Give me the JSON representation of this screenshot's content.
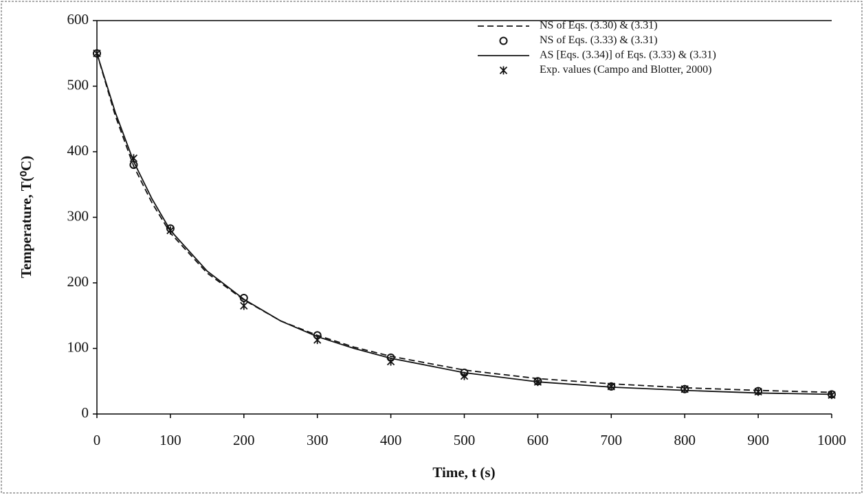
{
  "chart_data": {
    "type": "line",
    "x_label": "Time, t (s)",
    "y_label": "Temperature, T(⁰C)",
    "xlim": [
      0,
      1000
    ],
    "xticks": [
      0,
      100,
      200,
      300,
      400,
      500,
      600,
      700,
      800,
      900,
      1000
    ],
    "ylim": [
      0,
      600
    ],
    "yticks": [
      0,
      100,
      200,
      300,
      400,
      500,
      600
    ],
    "grid": false,
    "legend": "upper right",
    "series": [
      {
        "name": "NS of  Eqs. (3.30)  & (3.31)",
        "color": "#111111",
        "line_style": "dashed",
        "marker": "none",
        "x": [
          0,
          25,
          50,
          75,
          100,
          150,
          200,
          250,
          300,
          350,
          400,
          500,
          600,
          700,
          800,
          900,
          1000
        ],
        "values": [
          550,
          455,
          378,
          322,
          276,
          215,
          174,
          142,
          120,
          102,
          88,
          67,
          54,
          46,
          40,
          36,
          33
        ]
      },
      {
        "name": "NS of  Eqs. (3.33) & (3.31)",
        "color": "#111111",
        "line_style": "none",
        "marker": "circle",
        "x": [
          0,
          50,
          100,
          200,
          300,
          400,
          500,
          600,
          700,
          800,
          900,
          1000
        ],
        "values": [
          550,
          380,
          283,
          177,
          120,
          86,
          63,
          50,
          42,
          38,
          35,
          30
        ]
      },
      {
        "name": "AS [Eqs. (3.34)] of  Eqs. (3.33) & (3.31)",
        "color": "#111111",
        "line_style": "solid",
        "marker": "none",
        "x": [
          0,
          25,
          50,
          75,
          100,
          150,
          200,
          250,
          300,
          350,
          400,
          500,
          600,
          700,
          800,
          900,
          1000
        ],
        "values": [
          550,
          460,
          385,
          328,
          280,
          218,
          175,
          142,
          118,
          100,
          85,
          63,
          49,
          41,
          36,
          32,
          30
        ]
      },
      {
        "name": "Exp. values (Campo and Blotter, 2000)",
        "color": "#111111",
        "line_style": "none",
        "marker": "star",
        "x": [
          0,
          50,
          100,
          200,
          300,
          400,
          500,
          600,
          700,
          800,
          900,
          1000
        ],
        "values": [
          550,
          390,
          280,
          165,
          113,
          80,
          58,
          49,
          42,
          38,
          34,
          29
        ]
      }
    ]
  }
}
